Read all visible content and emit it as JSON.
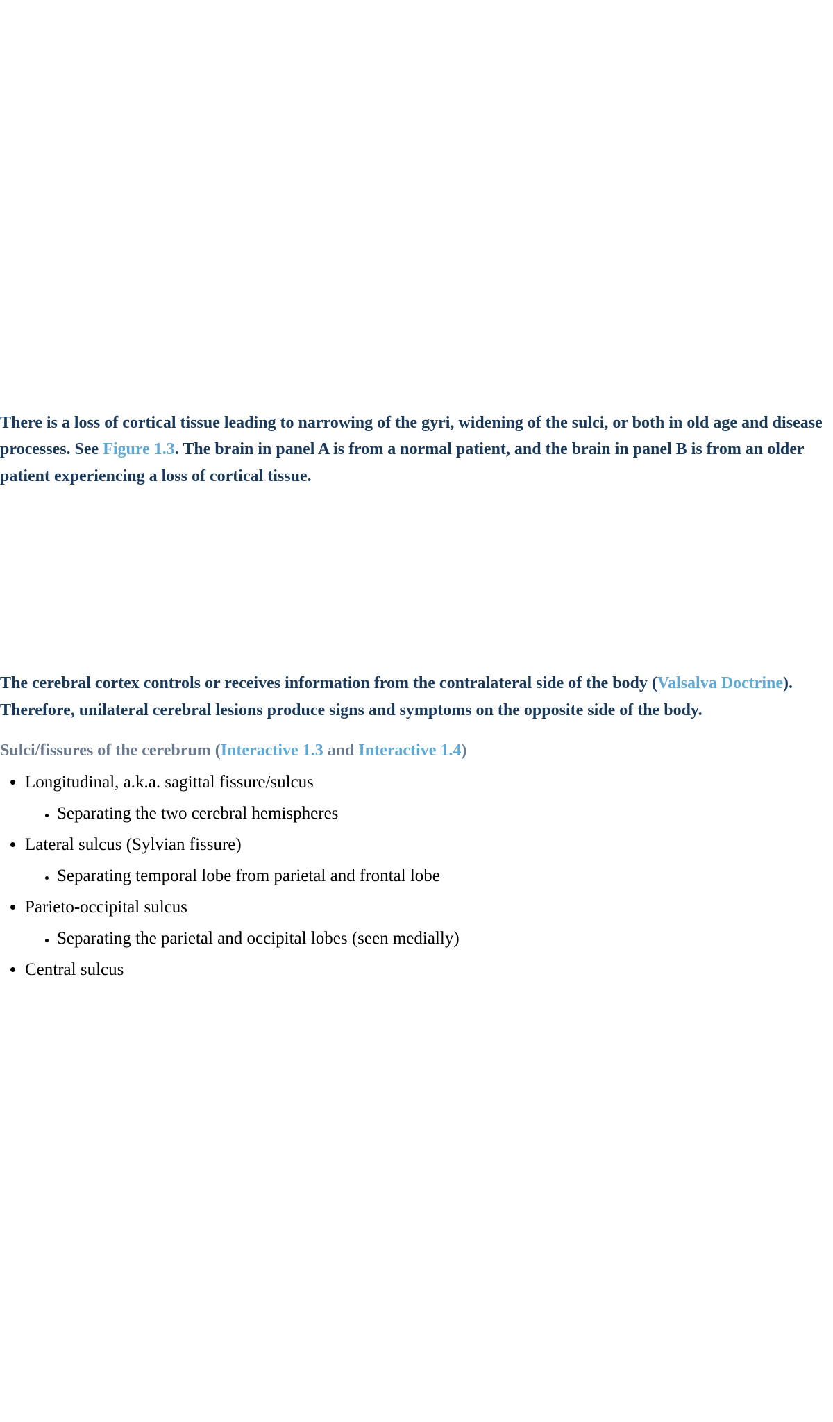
{
  "paragraph1": {
    "text_before_link": "There is a loss of cortical tissue leading to narrowing of the gyri, widening of the sulci, or both in old age and disease processes. See ",
    "link": "Figure 1.3",
    "text_after_link": ". The brain in panel A is from a normal patient, and the brain in panel B is from an older patient experiencing a loss of cortical tissue."
  },
  "paragraph2": {
    "text_before_link": "The cerebral cortex controls or receives information from the contralateral side of the body (",
    "link": "Valsalva Doctrine",
    "text_after_link": "). Therefore, unilateral cerebral lesions produce signs and symptoms on the opposite side of the body."
  },
  "subheading": {
    "text_before": "Sulci/fissures of the cerebrum (",
    "link1": "Interactive 1.3",
    "text_mid": " and ",
    "link2": "Interactive 1.4",
    "text_after": ")"
  },
  "list": {
    "items": [
      {
        "label": "Longitudinal, a.k.a. sagittal fissure/sulcus",
        "sub": [
          "Separating the two cerebral hemispheres"
        ]
      },
      {
        "label": "Lateral sulcus (Sylvian fissure)",
        "sub": [
          "Separating temporal lobe from parietal and frontal lobe"
        ]
      },
      {
        "label": "Parieto-occipital sulcus",
        "sub": [
          "Separating the parietal and occipital lobes (seen medially)"
        ]
      },
      {
        "label": "Central sulcus",
        "sub": []
      }
    ]
  },
  "colors": {
    "body_text": "#1a3a5c",
    "link": "#5fa8d3",
    "subheading_muted": "#6b7a8f",
    "list_text": "#000000",
    "background": "#ffffff"
  },
  "typography": {
    "para_fontsize": 24,
    "para_fontweight": 600,
    "subheading_fontsize": 24,
    "list_fontsize": 25,
    "font_family": "Georgia, serif"
  }
}
